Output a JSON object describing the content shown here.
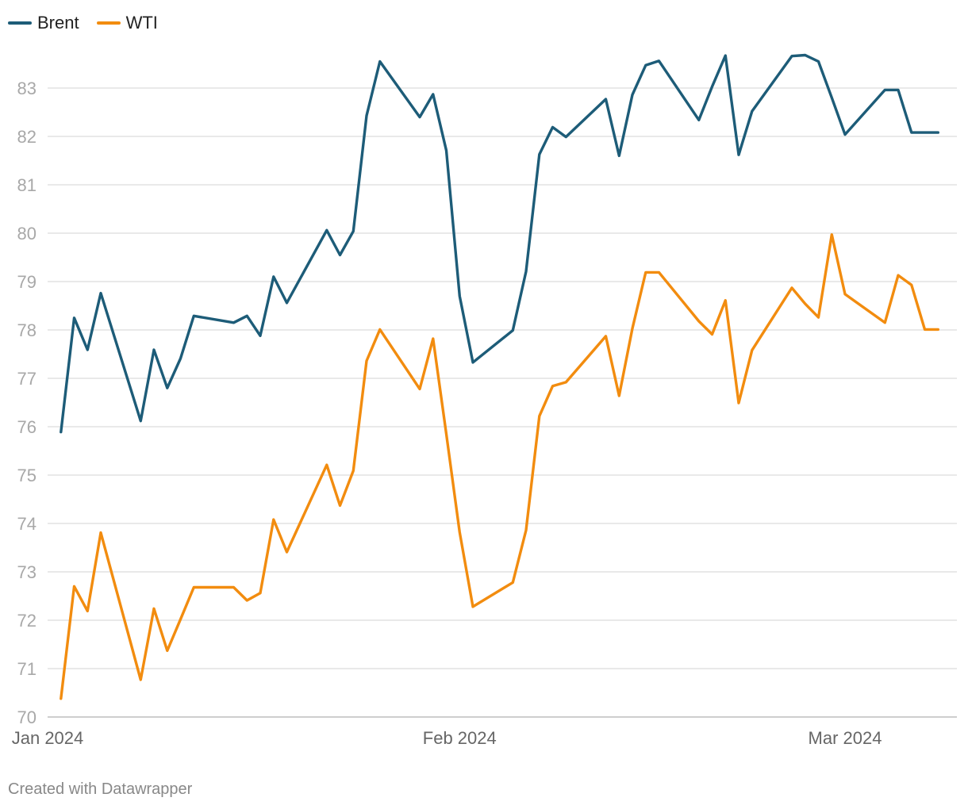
{
  "chart_data": {
    "type": "line",
    "title": "",
    "xlabel": "",
    "ylabel": "",
    "ylim": [
      70,
      84.4
    ],
    "yticks": [
      70,
      71,
      72,
      73,
      74,
      75,
      76,
      77,
      78,
      79,
      80,
      81,
      82,
      83
    ],
    "xticks": [
      {
        "day": 0,
        "label": "Jan 2024"
      },
      {
        "day": 31,
        "label": "Feb 2024"
      },
      {
        "day": 60,
        "label": "Mar 2024"
      }
    ],
    "xlim": [
      0,
      69
    ],
    "days": [
      1,
      2,
      3,
      4,
      7,
      8,
      9,
      10,
      11,
      14,
      15,
      16,
      17,
      18,
      21,
      22,
      23,
      24,
      25,
      28,
      29,
      30,
      31,
      32,
      35,
      36,
      37,
      38,
      39,
      42,
      43,
      44,
      45,
      46,
      49,
      50,
      51,
      52,
      53,
      56,
      57,
      58,
      59,
      60,
      63,
      64,
      65,
      66,
      67
    ],
    "series": [
      {
        "name": "Brent",
        "color": "#1d5c78",
        "values": [
          75.89,
          78.25,
          77.59,
          78.76,
          76.12,
          77.59,
          76.8,
          77.41,
          78.29,
          78.15,
          78.29,
          77.88,
          79.1,
          78.56,
          80.06,
          79.55,
          80.04,
          82.43,
          83.55,
          82.4,
          82.87,
          81.71,
          78.7,
          77.33,
          77.99,
          79.21,
          81.63,
          82.19,
          81.99,
          82.77,
          81.6,
          82.86,
          83.47,
          83.56,
          82.34,
          83.03,
          83.67,
          81.62,
          82.52,
          83.66,
          83.68,
          83.55,
          82.8,
          82.04,
          82.96,
          82.96,
          82.08,
          82.08,
          82.08
        ]
      },
      {
        "name": "WTI",
        "color": "#f28c0f",
        "values": [
          70.38,
          72.7,
          72.19,
          73.81,
          70.77,
          72.24,
          71.37,
          72.02,
          72.68,
          72.68,
          72.41,
          72.56,
          74.08,
          73.41,
          75.21,
          74.37,
          75.09,
          77.36,
          78.01,
          76.78,
          77.82,
          75.85,
          73.82,
          72.28,
          72.78,
          73.86,
          76.22,
          76.84,
          76.92,
          77.87,
          76.64,
          78.03,
          79.19,
          79.19,
          78.18,
          77.91,
          78.61,
          76.49,
          77.58,
          78.87,
          78.54,
          78.26,
          79.97,
          78.74,
          78.15,
          79.13,
          78.93,
          78.01,
          78.01
        ]
      }
    ]
  },
  "legend": {
    "brent_label": "Brent",
    "wti_label": "WTI"
  },
  "footer": {
    "credit": "Created with Datawrapper"
  }
}
